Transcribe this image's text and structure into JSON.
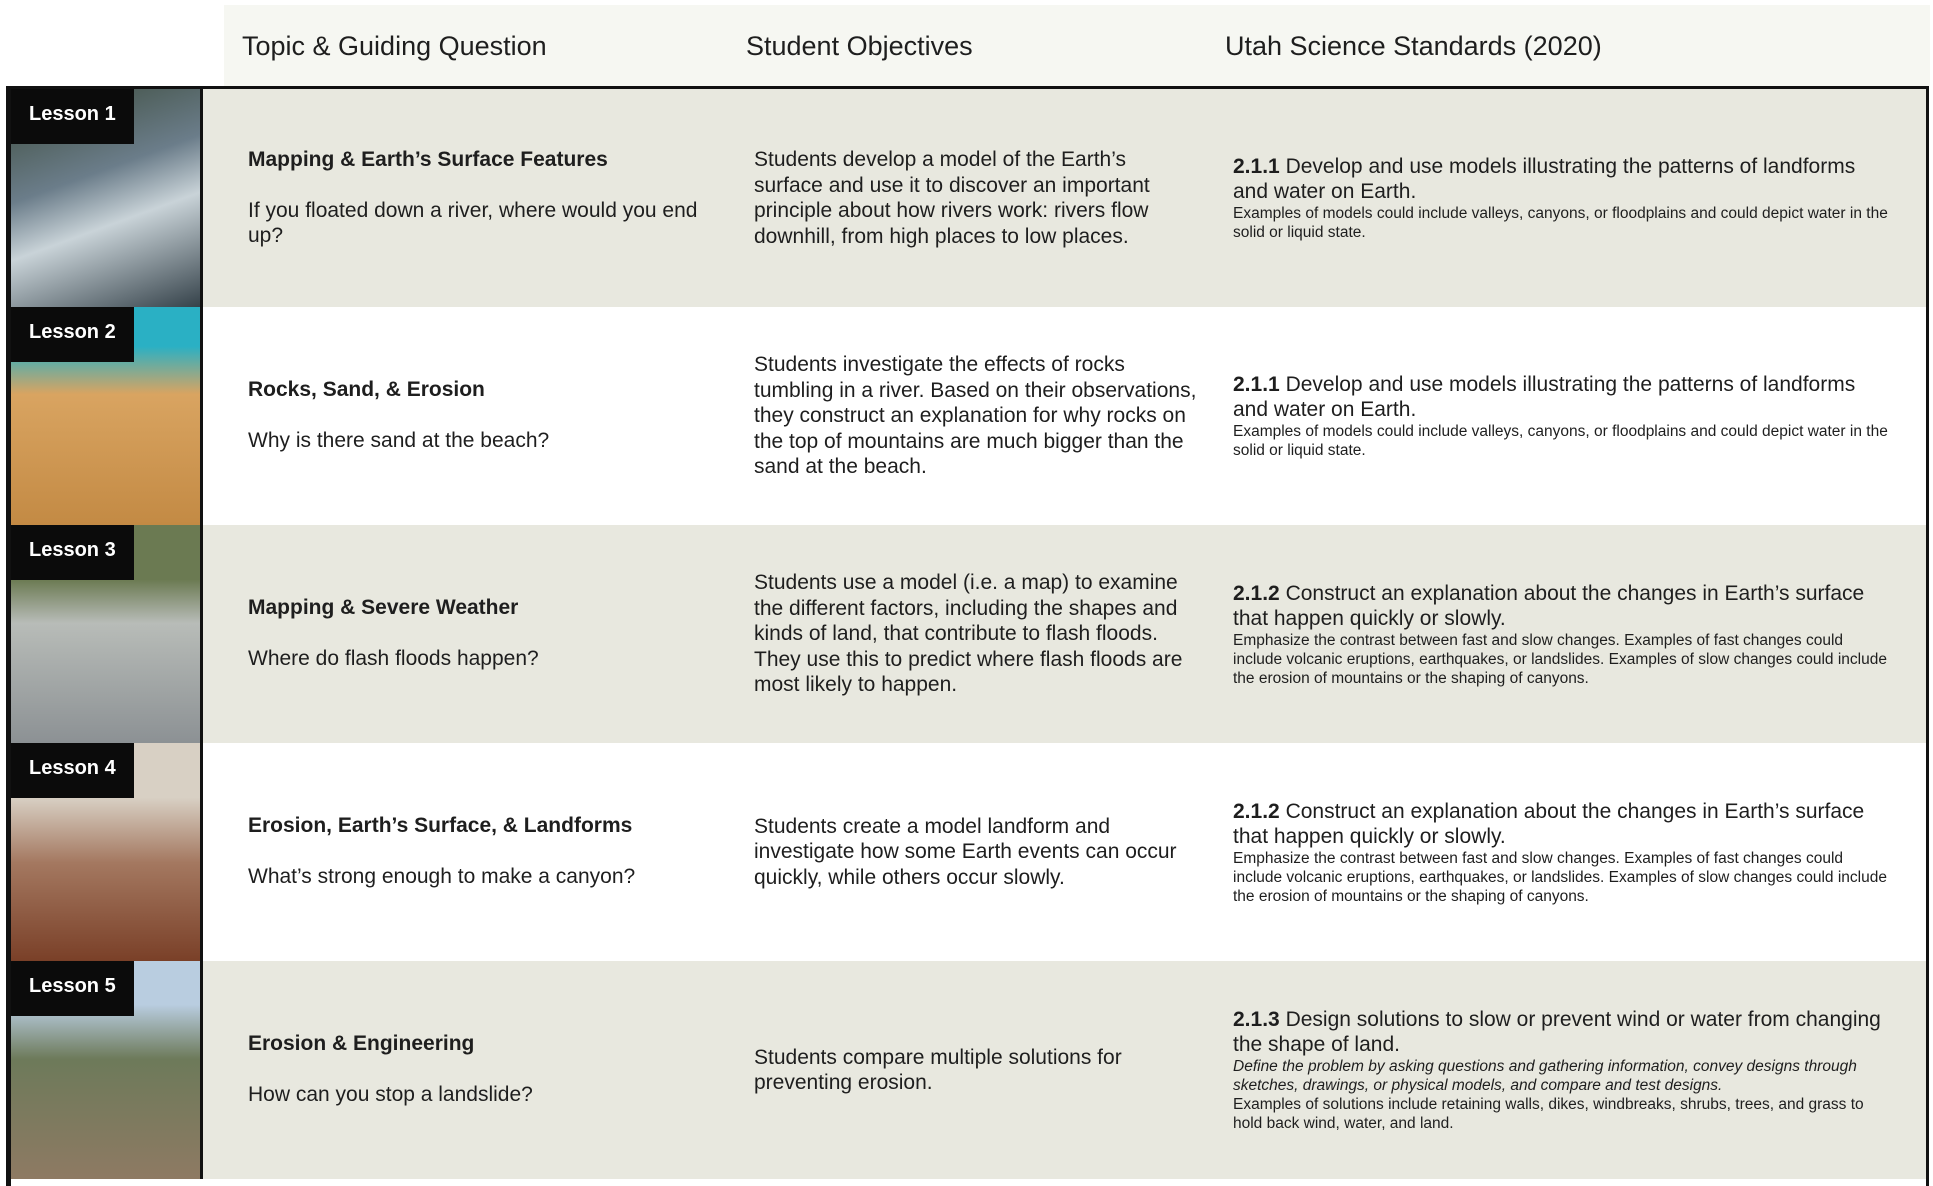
{
  "header": {
    "columns": [
      "Topic & Guiding Question",
      "Student Objectives",
      "Utah Science Standards (2020)"
    ]
  },
  "rows": [
    {
      "lesson": "Lesson 1",
      "title": "Mapping & Earth’s Surface Features",
      "question": "If you floated down a river, where would you end up?",
      "objectives": "Students develop a model of the Earth’s surface and use it to discover an important principle about how rivers work: rivers flow downhill, from high places to low places.",
      "standard": {
        "code": "2.1.1",
        "text": "Develop and use models illustrating the patterns of landforms and water on Earth.",
        "detail": "Examples of models could include valleys, canyons, or floodplains and could depict water in the solid or liquid state."
      }
    },
    {
      "lesson": "Lesson 2",
      "title": "Rocks, Sand, & Erosion",
      "question": "Why is there sand at the beach?",
      "objectives": "Students investigate the effects of rocks tumbling in a river. Based on their observations, they construct an explanation for why rocks on the top of mountains are much bigger than the sand at the beach.",
      "standard": {
        "code": "2.1.1",
        "text": "Develop and use models illustrating the patterns of landforms and water on Earth.",
        "detail": "Examples of models could include valleys, canyons, or floodplains and could depict water in the solid or liquid state."
      }
    },
    {
      "lesson": "Lesson 3",
      "title": "Mapping & Severe Weather",
      "question": "Where do flash floods happen?",
      "objectives": "Students use a model (i.e. a map) to examine the different factors, including the shapes and kinds of land, that contribute to flash floods. They use this to predict where flash floods are most likely to happen.",
      "standard": {
        "code": "2.1.2",
        "text": "Construct an explanation about the changes in Earth’s surface that happen quickly or slowly.",
        "detail": "Emphasize the contrast between fast and slow changes. Examples of fast changes could include volcanic eruptions, earthquakes, or landslides. Examples of slow changes could include the erosion of mountains or the shaping of canyons."
      }
    },
    {
      "lesson": "Lesson 4",
      "title": "Erosion, Earth’s Surface, & Landforms",
      "question": "What’s strong enough to make a canyon?",
      "objectives": "Students create a model landform and investigate how some Earth events can occur quickly, while others occur slowly.",
      "standard": {
        "code": "2.1.2",
        "text": "Construct an explanation about the changes in Earth’s surface that happen quickly or slowly.",
        "detail": "Emphasize the contrast between fast and slow changes. Examples of fast changes could include volcanic eruptions, earthquakes, or landslides. Examples of slow changes could include the erosion of mountains or the shaping of canyons."
      }
    },
    {
      "lesson": "Lesson 5",
      "title": "Erosion & Engineering",
      "question": "How can you stop a landslide?",
      "objectives": "Students compare multiple solutions for preventing erosion.",
      "standard": {
        "code": "2.1.3",
        "text": "Design solutions to slow or prevent wind or water from changing the shape of land.",
        "detail_italic": "Define the problem by asking questions and gathering information, convey designs through sketches, drawings, or physical models, and compare and test designs.",
        "detail": "Examples of solutions include retaining walls, dikes, windbreaks, shrubs, trees, and grass to hold back wind, water, and land."
      }
    }
  ]
}
